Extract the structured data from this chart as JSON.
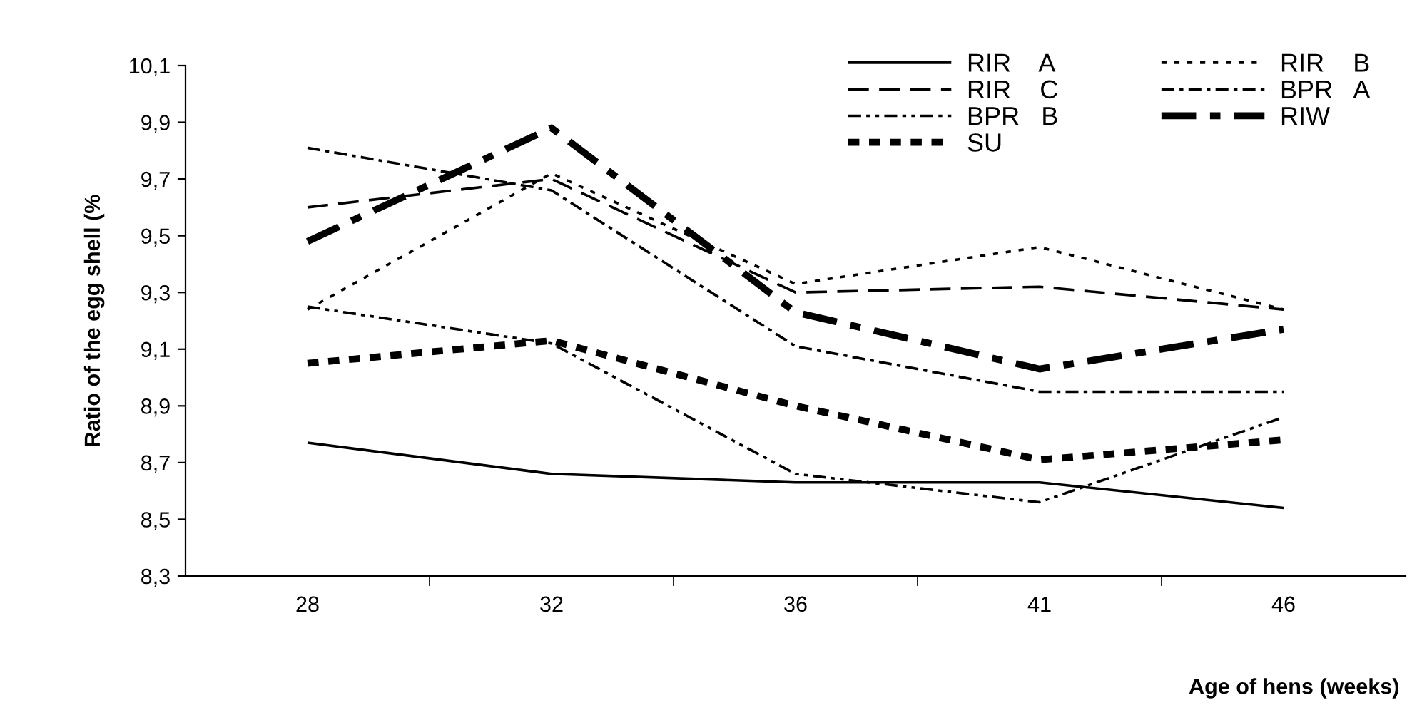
{
  "chart_data": {
    "type": "line",
    "xlabel": "Age of hens (weeks)",
    "ylabel": "Ratio of the egg shell (%",
    "categories": [
      "28",
      "32",
      "36",
      "41",
      "46"
    ],
    "ylim": [
      8.3,
      10.1
    ],
    "yticks": [
      {
        "value": 8.3,
        "label": "8,3"
      },
      {
        "value": 8.5,
        "label": "8,5"
      },
      {
        "value": 8.7,
        "label": "8,7"
      },
      {
        "value": 8.9,
        "label": "8,9"
      },
      {
        "value": 9.1,
        "label": "9,1"
      },
      {
        "value": 9.3,
        "label": "9,3"
      },
      {
        "value": 9.5,
        "label": "9,5"
      },
      {
        "value": 9.7,
        "label": "9,7"
      },
      {
        "value": 9.9,
        "label": "9,9"
      },
      {
        "value": 10.1,
        "label": "10,1"
      }
    ],
    "grid": false,
    "legend": "top right",
    "marker": "none",
    "series": [
      {
        "name": "RIR    A",
        "color": "#000000",
        "line_style": "solid",
        "values": [
          8.77,
          8.66,
          8.63,
          8.63,
          8.54
        ]
      },
      {
        "name": "RIR    B",
        "color": "#000000",
        "line_style": "dotted",
        "values": [
          9.24,
          9.72,
          9.33,
          9.46,
          9.24
        ]
      },
      {
        "name": "RIR    C",
        "color": "#000000",
        "line_style": "dashed",
        "values": [
          9.6,
          9.7,
          9.3,
          9.32,
          9.24
        ]
      },
      {
        "name": "BPR   A",
        "color": "#000000",
        "line_style": "dashdot",
        "values": [
          9.81,
          9.66,
          9.11,
          8.95,
          8.95
        ]
      },
      {
        "name": "BPR   B",
        "color": "#000000",
        "line_style": "dashdotdot",
        "values": [
          9.25,
          9.12,
          8.66,
          8.56,
          8.86
        ]
      },
      {
        "name": "RIW",
        "color": "#000000",
        "line_style": "bold-dashdot",
        "values": [
          9.48,
          9.88,
          9.23,
          9.03,
          9.17
        ]
      },
      {
        "name": "SU",
        "color": "#000000",
        "line_style": "bold-dashed",
        "values": [
          9.05,
          9.13,
          8.9,
          8.71,
          8.78
        ]
      }
    ]
  }
}
